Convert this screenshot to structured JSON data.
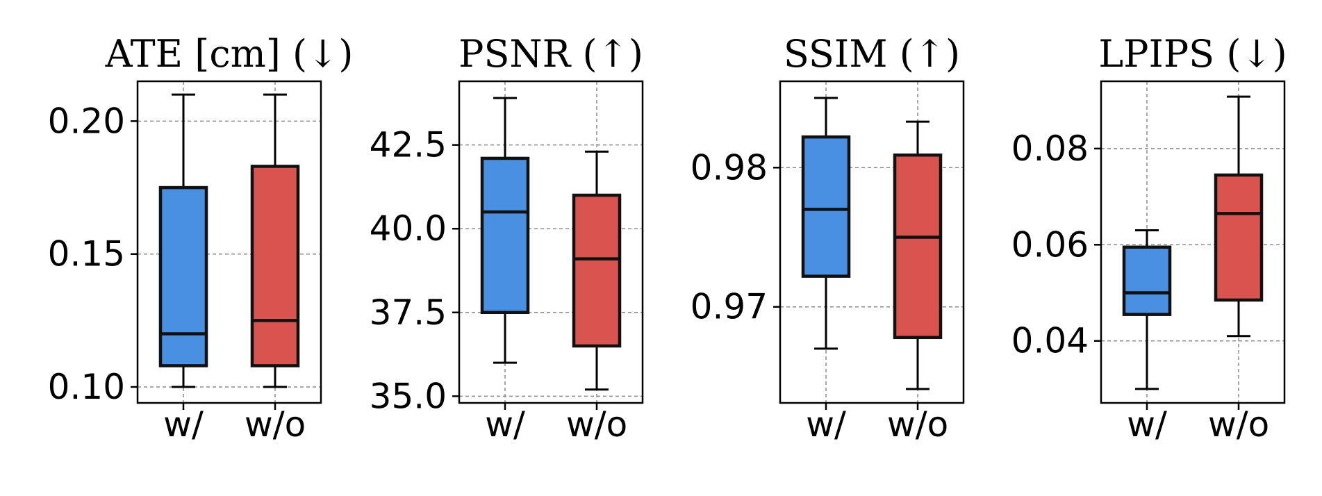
{
  "chart_data": [
    {
      "type": "box",
      "title": "ATE [cm] (↓)",
      "categories": [
        "w/",
        "w/o"
      ],
      "ylim": [
        0.094,
        0.215
      ],
      "yticks": [
        0.1,
        0.15,
        0.2
      ],
      "ytick_labels": [
        "0.10",
        "0.15",
        "0.20"
      ],
      "grid": true,
      "series": [
        {
          "name": "w/",
          "color": "#4a90e2",
          "whislo": 0.1,
          "q1": 0.108,
          "median": 0.12,
          "q3": 0.175,
          "whishi": 0.21
        },
        {
          "name": "w/o",
          "color": "#d9534f",
          "whislo": 0.1,
          "q1": 0.108,
          "median": 0.125,
          "q3": 0.183,
          "whishi": 0.21
        }
      ]
    },
    {
      "type": "box",
      "title": "PSNR (↑)",
      "categories": [
        "w/",
        "w/o"
      ],
      "ylim": [
        34.8,
        44.4
      ],
      "yticks": [
        35.0,
        37.5,
        40.0,
        42.5
      ],
      "ytick_labels": [
        "35.0",
        "37.5",
        "40.0",
        "42.5"
      ],
      "grid": true,
      "series": [
        {
          "name": "w/",
          "color": "#4a90e2",
          "whislo": 36.0,
          "q1": 37.5,
          "median": 40.5,
          "q3": 42.1,
          "whishi": 43.9
        },
        {
          "name": "w/o",
          "color": "#d9534f",
          "whislo": 35.2,
          "q1": 36.5,
          "median": 39.1,
          "q3": 41.0,
          "whishi": 42.3
        }
      ]
    },
    {
      "type": "box",
      "title": "SSIM (↑)",
      "categories": [
        "w/",
        "w/o"
      ],
      "ylim": [
        0.9631,
        0.9862
      ],
      "yticks": [
        0.97,
        0.98
      ],
      "ytick_labels": [
        "0.97",
        "0.98"
      ],
      "grid": true,
      "series": [
        {
          "name": "w/",
          "color": "#4a90e2",
          "whislo": 0.967,
          "q1": 0.9722,
          "median": 0.977,
          "q3": 0.9822,
          "whishi": 0.985
        },
        {
          "name": "w/o",
          "color": "#d9534f",
          "whislo": 0.9641,
          "q1": 0.9678,
          "median": 0.975,
          "q3": 0.9809,
          "whishi": 0.9833
        }
      ]
    },
    {
      "type": "box",
      "title": "LPIPS (↓)",
      "categories": [
        "w/",
        "w/o"
      ],
      "ylim": [
        0.0271,
        0.094
      ],
      "yticks": [
        0.04,
        0.06,
        0.08
      ],
      "ytick_labels": [
        "0.04",
        "0.06",
        "0.08"
      ],
      "grid": true,
      "series": [
        {
          "name": "w/",
          "color": "#4a90e2",
          "whislo": 0.03,
          "q1": 0.0455,
          "median": 0.05,
          "q3": 0.0595,
          "whishi": 0.063
        },
        {
          "name": "w/o",
          "color": "#d9534f",
          "whislo": 0.041,
          "q1": 0.0485,
          "median": 0.0665,
          "q3": 0.0745,
          "whishi": 0.0908
        }
      ]
    }
  ]
}
